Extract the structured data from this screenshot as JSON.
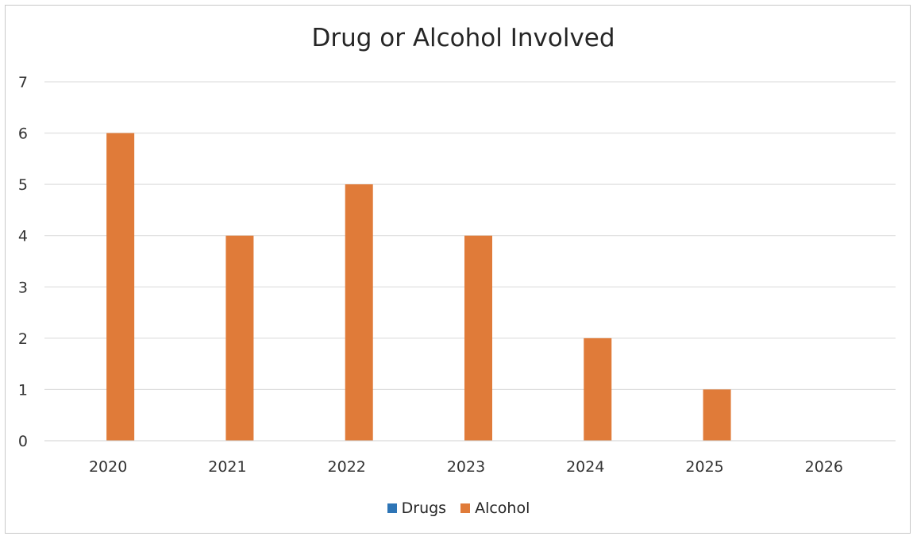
{
  "chart_data": {
    "type": "bar",
    "title": "Drug or Alcohol Involved",
    "xlabel": "",
    "ylabel": "",
    "categories": [
      "2020",
      "2021",
      "2022",
      "2023",
      "2024",
      "2025",
      "2026"
    ],
    "series": [
      {
        "name": "Drugs",
        "color": "#2e75b6",
        "values": [
          0,
          0,
          0,
          0,
          0,
          0,
          0
        ]
      },
      {
        "name": "Alcohol",
        "color": "#e07b39",
        "values": [
          6,
          4,
          5,
          4,
          2,
          1,
          0
        ]
      }
    ],
    "ylim": [
      0,
      7
    ],
    "yticks": [
      "0",
      "1",
      "2",
      "3",
      "4",
      "5",
      "6",
      "7"
    ],
    "grid": true,
    "legend_position": "bottom"
  }
}
